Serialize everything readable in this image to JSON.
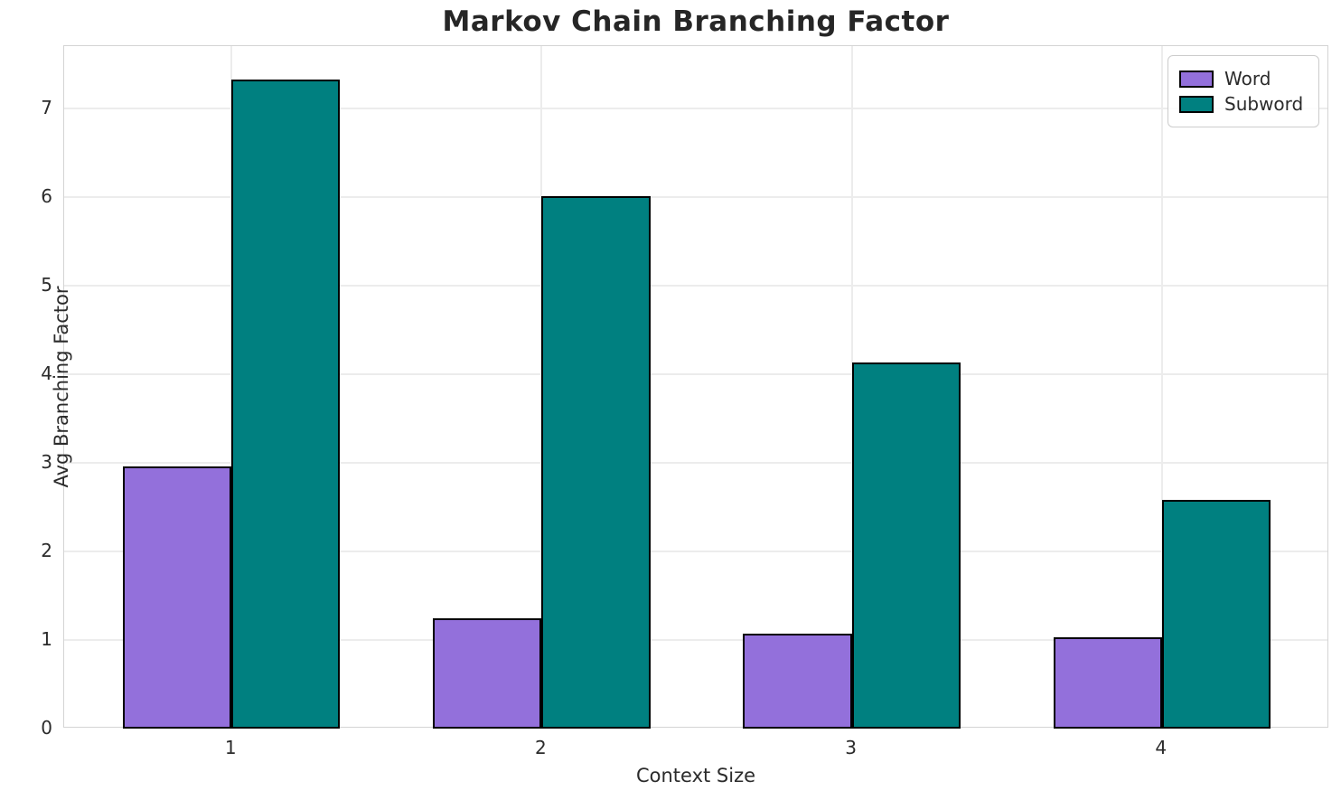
{
  "title": "Markov Chain Branching Factor",
  "chart_data": {
    "type": "bar",
    "title": "Markov Chain Branching Factor",
    "xlabel": "Context Size",
    "ylabel": "Avg Branching Factor",
    "categories": [
      "1",
      "2",
      "3",
      "4"
    ],
    "series": [
      {
        "name": "Word",
        "color": "#9370DB",
        "values": [
          2.96,
          1.24,
          1.07,
          1.03
        ]
      },
      {
        "name": "Subword",
        "color": "#008080",
        "values": [
          7.32,
          6.01,
          4.13,
          2.58
        ]
      }
    ],
    "bar_width": 0.35,
    "bar_edge_color": "#000000",
    "xlim": [
      0.46,
      4.54
    ],
    "ylim": [
      0,
      7.7
    ],
    "yticks": [
      0,
      1,
      2,
      3,
      4,
      5,
      6,
      7
    ],
    "grid": true,
    "grid_color": "#ececec",
    "spine_color": "#d4d4d4",
    "background_color": "#ffffff",
    "legend_position": "upper right"
  }
}
